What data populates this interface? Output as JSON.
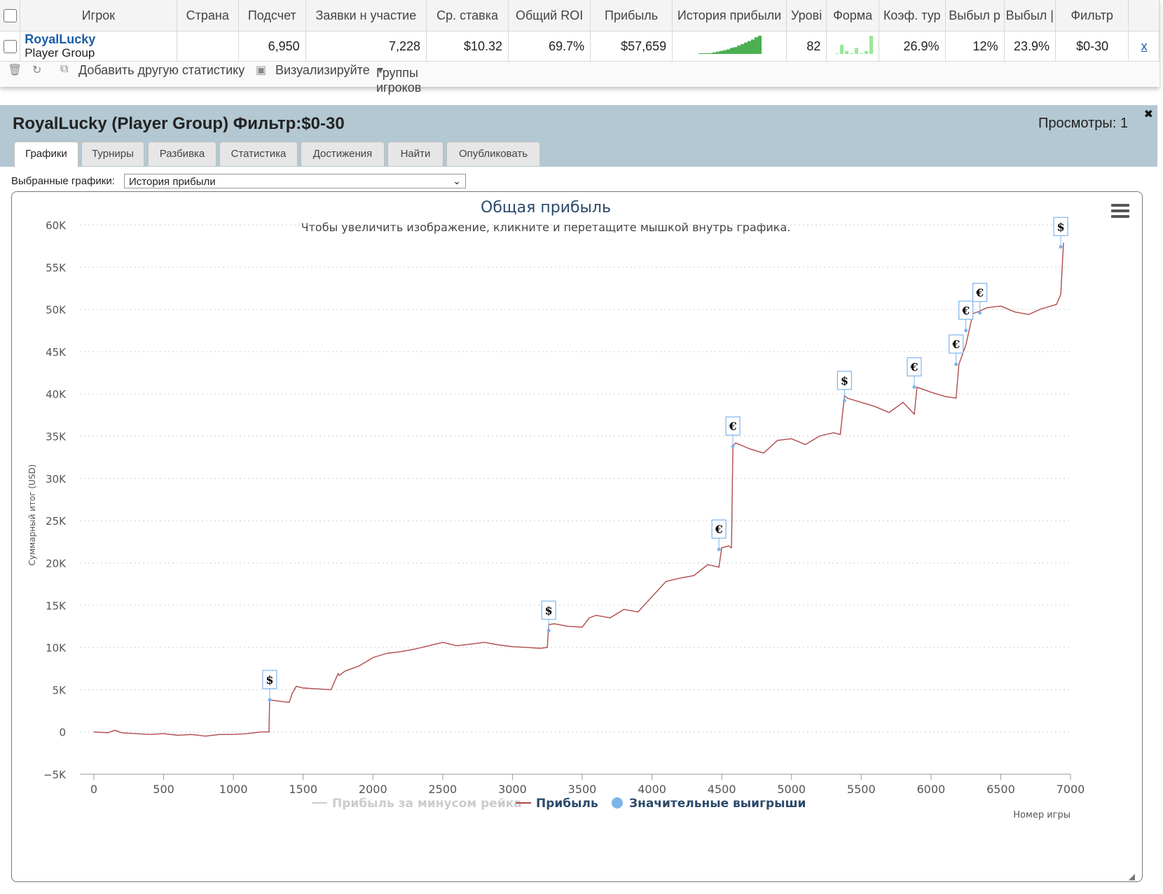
{
  "table": {
    "headers": [
      "Игрок",
      "Страна",
      "Подсчет",
      "Заявки н участие",
      "Ср. ставка",
      "Общий ROI",
      "Прибыль",
      "История прибыли",
      "Урові",
      "Форма",
      "Коэф. тур",
      "Выбыл р",
      "Выбыл |",
      "Фильтр"
    ],
    "row": {
      "player_name": "RoyalLucky",
      "player_group": "Player Group",
      "country": "",
      "count": "6,950",
      "entries": "7,228",
      "avg_stake": "$10.32",
      "roi": "69.7%",
      "profit": "$57,659",
      "level": "82",
      "coef": "26.9%",
      "out1": "12%",
      "out2": "23.9%",
      "filter": "$0-30",
      "remove": "x"
    },
    "sparkline_history": [
      0,
      0,
      0,
      1,
      2,
      3,
      4,
      5,
      6,
      8,
      9,
      11,
      13,
      15,
      17,
      19,
      22,
      24
    ],
    "sparkline_form": [
      0,
      3,
      1,
      0,
      2,
      0,
      1,
      6
    ],
    "accent_green": "#4caf50",
    "form_green": "#98e898"
  },
  "toolbar": {
    "trash_icon": "trash-icon",
    "refresh_icon": "refresh-icon",
    "add_stat": "Добавить другую статистику",
    "visualize": "Визуализируйте",
    "groups": "Группы игроков"
  },
  "panel": {
    "title": "RoyalLucky (Player Group) Фильтр:$0-30",
    "views": "Просмотры: 1",
    "close": "✖",
    "tabs": [
      "Графики",
      "Турниры",
      "Разбивка",
      "Статистика",
      "Достижения",
      "Найти",
      "Опубликовать"
    ],
    "active_tab": 0,
    "select_label": "Выбранные графики:",
    "select_value": "История прибыли"
  },
  "chart_data": {
    "type": "line",
    "title": "Общая прибыль",
    "subtitle": "Чтобы увеличить изображение, кликните и перетащите мышкой внутрь графика.",
    "xlabel": "Номер игры",
    "ylabel": "Суммарный итог (USD)",
    "xlim": [
      0,
      7000
    ],
    "ylim": [
      -5000,
      60000
    ],
    "x_ticks": [
      0,
      500,
      1000,
      1500,
      2000,
      2500,
      3000,
      3500,
      4000,
      4500,
      5000,
      5500,
      6000,
      6500,
      7000
    ],
    "y_ticks": [
      -5000,
      0,
      5000,
      10000,
      15000,
      20000,
      25000,
      30000,
      35000,
      40000,
      45000,
      50000,
      55000,
      60000
    ],
    "y_tick_labels": [
      "−5K",
      "0",
      "5K",
      "10K",
      "15K",
      "20K",
      "25K",
      "30K",
      "35K",
      "40K",
      "45K",
      "50K",
      "55K",
      "60K"
    ],
    "grid": true,
    "legend_position": "bottom",
    "legend": [
      "Прибыль за минусом рейка",
      "Прибыль",
      "Значительные выигрыши"
    ],
    "series": [
      {
        "name": "Прибыль",
        "color": "#b04a4a",
        "x": [
          0,
          100,
          150,
          200,
          300,
          400,
          500,
          600,
          700,
          800,
          900,
          1000,
          1100,
          1200,
          1255,
          1260,
          1300,
          1350,
          1400,
          1420,
          1450,
          1500,
          1600,
          1700,
          1750,
          1760,
          1800,
          1900,
          2000,
          2100,
          2200,
          2300,
          2400,
          2500,
          2600,
          2700,
          2800,
          2900,
          3000,
          3100,
          3200,
          3250,
          3260,
          3300,
          3400,
          3500,
          3550,
          3600,
          3700,
          3800,
          3900,
          4000,
          4100,
          4200,
          4300,
          4400,
          4480,
          4500,
          4550,
          4570,
          4580,
          4600,
          4700,
          4800,
          4900,
          5000,
          5100,
          5200,
          5300,
          5350,
          5380,
          5400,
          5500,
          5600,
          5700,
          5800,
          5880,
          5900,
          6000,
          6100,
          6180,
          6200,
          6250,
          6280,
          6300,
          6350,
          6400,
          6500,
          6600,
          6700,
          6780,
          6900,
          6930,
          6950
        ],
        "y": [
          0,
          -100,
          200,
          -100,
          -200,
          -300,
          -200,
          -400,
          -300,
          -500,
          -300,
          -300,
          -200,
          0,
          0,
          3800,
          3700,
          3600,
          3500,
          4500,
          5400,
          5200,
          5100,
          5000,
          6900,
          6700,
          7200,
          7800,
          8800,
          9300,
          9500,
          9800,
          10200,
          10600,
          10200,
          10400,
          10600,
          10300,
          10100,
          10000,
          9900,
          10000,
          12700,
          12800,
          12500,
          12400,
          13500,
          13800,
          13500,
          14500,
          14200,
          16000,
          17800,
          18200,
          18500,
          19800,
          19500,
          21800,
          22000,
          21800,
          33800,
          34200,
          33500,
          33000,
          34500,
          34700,
          34000,
          35000,
          35400,
          35200,
          39800,
          39500,
          39000,
          38500,
          37800,
          39000,
          37600,
          40800,
          40200,
          39700,
          39500,
          43500,
          45800,
          48000,
          49500,
          49800,
          50200,
          50400,
          49700,
          49400,
          50000,
          50600,
          51800,
          57900
        ]
      },
      {
        "name": "Значительные выигрыши",
        "color": "#7cb5ec",
        "type": "markers",
        "x": [
          1260,
          3260,
          4480,
          4580,
          5380,
          5880,
          6180,
          6250,
          6350,
          6930
        ],
        "y": [
          3800,
          12000,
          21600,
          33800,
          39200,
          40800,
          43500,
          47500,
          49600,
          57400
        ],
        "flags": [
          "$",
          "$",
          "€",
          "€",
          "$",
          "€",
          "€",
          "€",
          "€",
          "$"
        ]
      },
      {
        "name": "Прибыль за минусом рейка",
        "color": "#cccccc",
        "x": [],
        "y": []
      }
    ]
  }
}
